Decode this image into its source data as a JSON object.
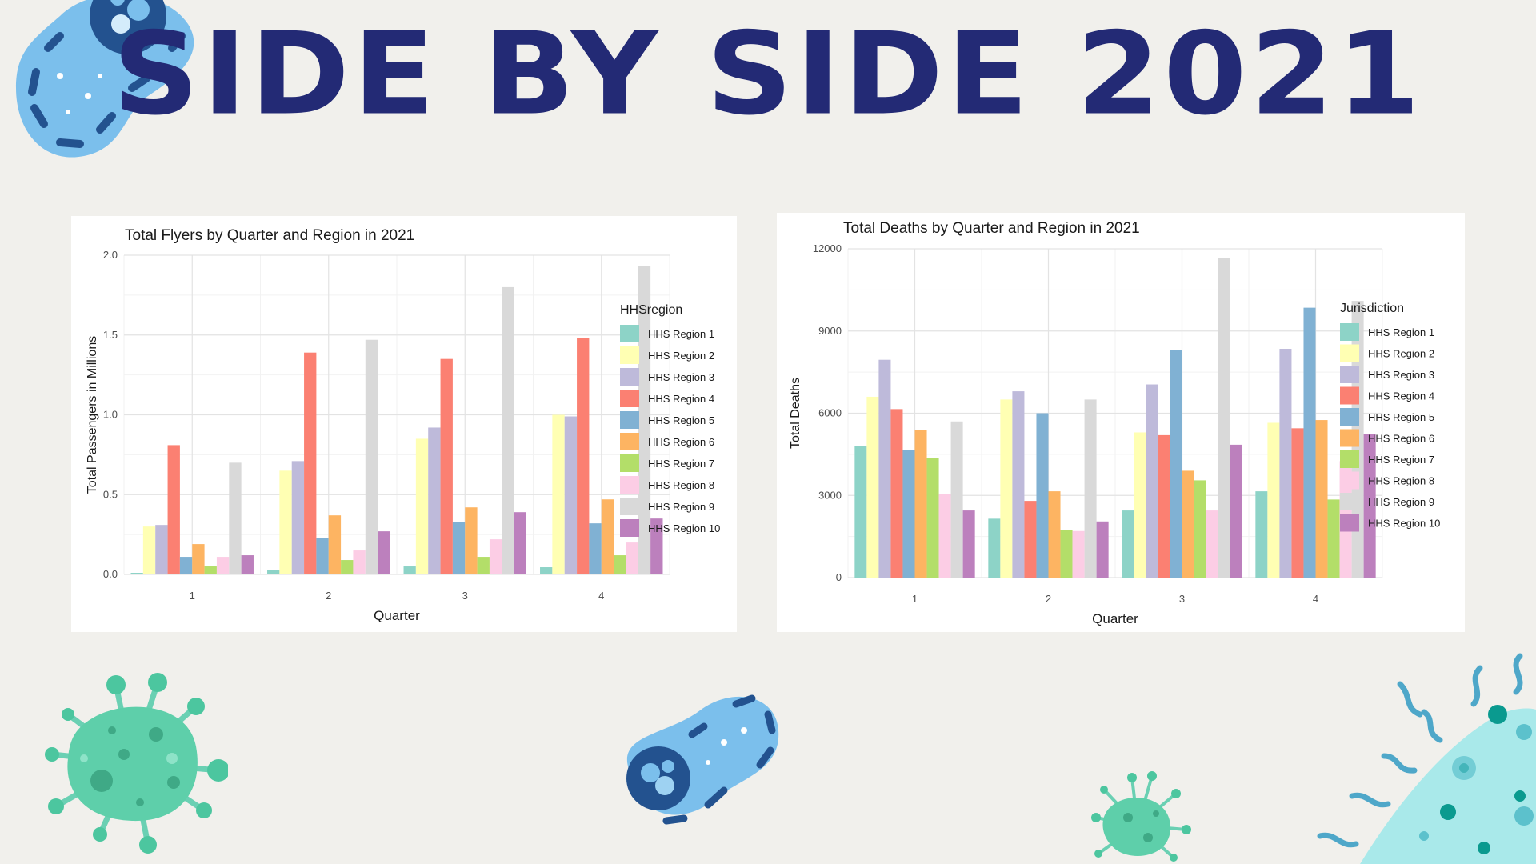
{
  "page": {
    "title": "SIDE BY SIDE 2021"
  },
  "palette": [
    "#8dd3c7",
    "#ffffb3",
    "#bebada",
    "#fb8072",
    "#80b1d3",
    "#fdb462",
    "#b3de69",
    "#fccde5",
    "#d9d9d9",
    "#bc80bd"
  ],
  "chart_data": [
    {
      "type": "bar",
      "title": "Total Flyers by Quarter and Region in 2021",
      "xlabel": "Quarter",
      "ylabel": "Total Passengers in Millions",
      "categories": [
        "1",
        "2",
        "3",
        "4"
      ],
      "ylim": [
        0,
        2.0
      ],
      "yticks": [
        "0.0",
        "0.5",
        "1.0",
        "1.5",
        "2.0"
      ],
      "ytick_values": [
        0,
        0.5,
        1.0,
        1.5,
        2.0
      ],
      "legend_title": "HHSregion",
      "legend_position": "right",
      "grid": true,
      "series": [
        {
          "name": "HHS Region 1",
          "values": [
            0.01,
            0.03,
            0.05,
            0.045
          ]
        },
        {
          "name": "HHS Region 2",
          "values": [
            0.3,
            0.65,
            0.85,
            1.0
          ]
        },
        {
          "name": "HHS Region 3",
          "values": [
            0.31,
            0.71,
            0.92,
            0.99
          ]
        },
        {
          "name": "HHS Region 4",
          "values": [
            0.81,
            1.39,
            1.35,
            1.48
          ]
        },
        {
          "name": "HHS Region 5",
          "values": [
            0.11,
            0.23,
            0.33,
            0.32
          ]
        },
        {
          "name": "HHS Region 6",
          "values": [
            0.19,
            0.37,
            0.42,
            0.47
          ]
        },
        {
          "name": "HHS Region 7",
          "values": [
            0.05,
            0.09,
            0.11,
            0.12
          ]
        },
        {
          "name": "HHS Region 8",
          "values": [
            0.11,
            0.15,
            0.22,
            0.2
          ]
        },
        {
          "name": "HHS Region 9",
          "values": [
            0.7,
            1.47,
            1.8,
            1.93
          ]
        },
        {
          "name": "HHS Region 10",
          "values": [
            0.12,
            0.27,
            0.39,
            0.35
          ]
        }
      ]
    },
    {
      "type": "bar",
      "title": "Total Deaths by Quarter and Region in 2021",
      "xlabel": "Quarter",
      "ylabel": "Total Deaths",
      "categories": [
        "1",
        "2",
        "3",
        "4"
      ],
      "ylim": [
        0,
        12000
      ],
      "yticks": [
        "0",
        "3000",
        "6000",
        "9000",
        "12000"
      ],
      "ytick_values": [
        0,
        3000,
        6000,
        9000,
        12000
      ],
      "legend_title": "Jurisdiction",
      "legend_position": "right",
      "grid": true,
      "series": [
        {
          "name": "HHS Region 1",
          "values": [
            4800,
            2150,
            2450,
            3150
          ]
        },
        {
          "name": "HHS Region 2",
          "values": [
            6600,
            6500,
            5300,
            5650
          ]
        },
        {
          "name": "HHS Region 3",
          "values": [
            7950,
            6800,
            7050,
            8350
          ]
        },
        {
          "name": "HHS Region 4",
          "values": [
            6150,
            2800,
            5200,
            5450
          ]
        },
        {
          "name": "HHS Region 5",
          "values": [
            4650,
            6000,
            8300,
            9850
          ]
        },
        {
          "name": "HHS Region 6",
          "values": [
            5400,
            3150,
            3900,
            5750
          ]
        },
        {
          "name": "HHS Region 7",
          "values": [
            4350,
            1750,
            3550,
            2850
          ]
        },
        {
          "name": "HHS Region 8",
          "values": [
            3050,
            1700,
            2450,
            4250
          ]
        },
        {
          "name": "HHS Region 9",
          "values": [
            5700,
            6500,
            11650,
            10100
          ]
        },
        {
          "name": "HHS Region 10",
          "values": [
            2450,
            2050,
            4850,
            5250
          ]
        }
      ]
    }
  ]
}
